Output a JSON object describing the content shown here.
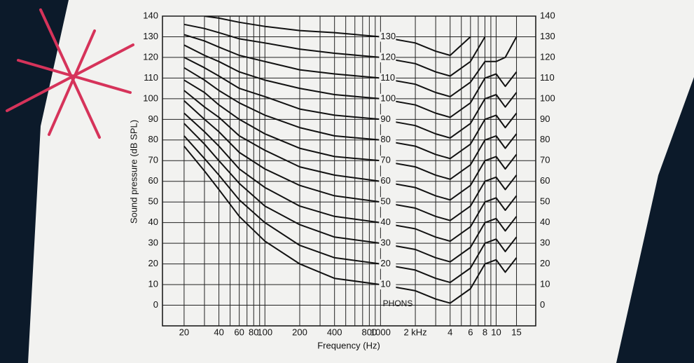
{
  "chart_data": {
    "type": "line",
    "xlabel": "Frequency (Hz)",
    "ylabel": "Sound pressure (dB SPL)",
    "legend_title": "PHONS",
    "x": [
      20,
      30,
      40,
      60,
      100,
      200,
      400,
      1000,
      2000,
      3000,
      4000,
      6000,
      8000,
      10000,
      12000,
      15000
    ],
    "xscale": "log",
    "xlim": [
      13,
      22000
    ],
    "xticks": [
      20,
      40,
      60,
      80,
      100,
      200,
      400,
      800,
      1000,
      {
        "value": 2000,
        "label": "2 kHz"
      },
      {
        "value": 4000,
        "label": "4"
      },
      {
        "value": 6000,
        "label": "6"
      },
      {
        "value": 8000,
        "label": "8"
      },
      {
        "value": 10000,
        "label": "10"
      },
      {
        "value": 15000,
        "label": "15"
      }
    ],
    "xgrid_minor": [
      30,
      50,
      70,
      90,
      300,
      500,
      600,
      700,
      900,
      3000,
      5000,
      7000,
      9000
    ],
    "ylim": [
      -10,
      140
    ],
    "yticks": [
      0,
      10,
      20,
      30,
      40,
      50,
      60,
      70,
      80,
      90,
      100,
      110,
      120,
      130,
      140
    ],
    "grid": true,
    "color": "#111111",
    "series": [
      {
        "name": "10",
        "values": [
          77,
          65,
          56,
          43,
          31,
          20,
          13,
          10,
          7,
          3,
          1,
          8,
          20,
          22,
          16,
          23
        ]
      },
      {
        "name": "20",
        "values": [
          82,
          71,
          63,
          51,
          40,
          29,
          23,
          20,
          17,
          13,
          11,
          18,
          30,
          32,
          26,
          33
        ]
      },
      {
        "name": "30",
        "values": [
          88,
          78,
          70,
          59,
          48,
          39,
          33,
          30,
          27,
          23,
          21,
          28,
          40,
          42,
          36,
          43
        ]
      },
      {
        "name": "40",
        "values": [
          93,
          84,
          77,
          66,
          57,
          48,
          43,
          40,
          37,
          33,
          31,
          38,
          50,
          52,
          46,
          53
        ]
      },
      {
        "name": "50",
        "values": [
          99,
          90,
          84,
          74,
          66,
          58,
          53,
          50,
          47,
          43,
          41,
          48,
          60,
          62,
          56,
          63
        ]
      },
      {
        "name": "60",
        "values": [
          104,
          96,
          91,
          82,
          75,
          67,
          63,
          60,
          57,
          53,
          51,
          58,
          70,
          72,
          66,
          73
        ]
      },
      {
        "name": "70",
        "values": [
          109,
          103,
          97,
          90,
          83,
          76,
          72,
          70,
          67,
          63,
          61,
          68,
          80,
          82,
          76,
          83
        ]
      },
      {
        "name": "80",
        "values": [
          115,
          109,
          104,
          98,
          92,
          86,
          82,
          80,
          77,
          73,
          71,
          78,
          90,
          92,
          86,
          93
        ]
      },
      {
        "name": "90",
        "values": [
          120,
          115,
          111,
          105,
          101,
          95,
          92,
          90,
          87,
          83,
          81,
          88,
          100,
          102,
          96,
          103
        ]
      },
      {
        "name": "100",
        "values": [
          126,
          121,
          118,
          113,
          109,
          105,
          102,
          100,
          97,
          93,
          91,
          98,
          110,
          112,
          106,
          113
        ]
      },
      {
        "name": "110",
        "values": [
          131,
          128,
          125,
          121,
          118,
          114,
          112,
          110,
          107,
          103,
          101,
          108,
          118,
          118,
          120,
          130
        ]
      },
      {
        "name": "120",
        "values": [
          136,
          134,
          132,
          129,
          127,
          124,
          122,
          120,
          117,
          113,
          111,
          118,
          130,
          null,
          null,
          null
        ]
      },
      {
        "name": "130",
        "values": [
          null,
          140,
          139,
          137,
          135,
          133,
          132,
          130,
          127,
          123,
          121,
          130,
          null,
          null,
          null,
          null
        ]
      }
    ]
  }
}
